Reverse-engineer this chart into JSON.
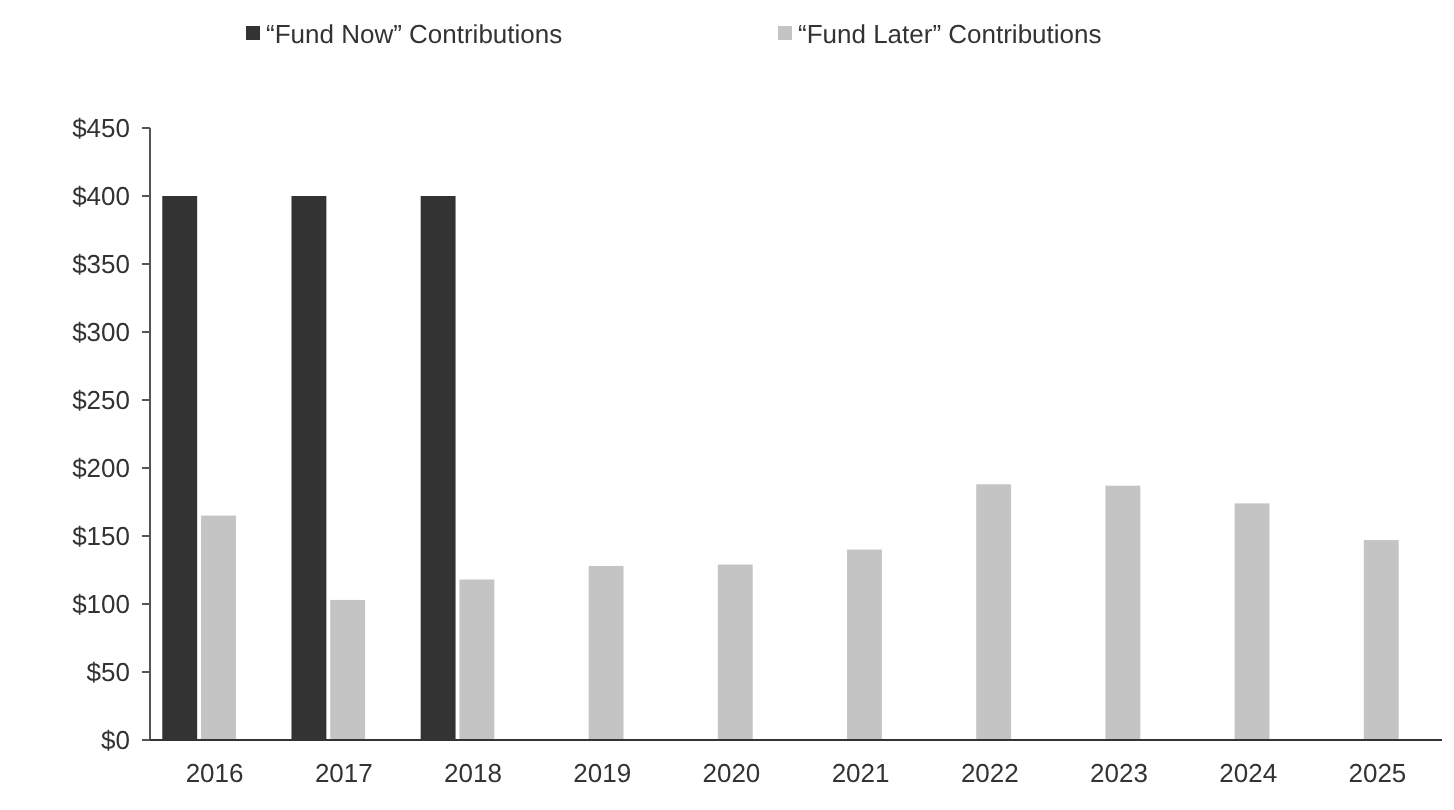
{
  "chart_data": {
    "type": "bar",
    "categories": [
      "2016",
      "2017",
      "2018",
      "2019",
      "2020",
      "2021",
      "2022",
      "2023",
      "2024",
      "2025"
    ],
    "series": [
      {
        "name": "“Fund Now” Contributions",
        "color": "#333333",
        "values": [
          400,
          400,
          400,
          null,
          null,
          null,
          null,
          null,
          null,
          null
        ]
      },
      {
        "name": "“Fund Later” Contributions",
        "color": "#c4c4c4",
        "values": [
          165,
          103,
          118,
          128,
          129,
          140,
          188,
          187,
          174,
          147
        ]
      }
    ],
    "ylim": [
      0,
      450
    ],
    "yticks": [
      {
        "value": 0,
        "label": "$0"
      },
      {
        "value": 50,
        "label": "$50"
      },
      {
        "value": 100,
        "label": "$100"
      },
      {
        "value": 150,
        "label": "$150"
      },
      {
        "value": 200,
        "label": "$200"
      },
      {
        "value": 250,
        "label": "$250"
      },
      {
        "value": 300,
        "label": "$300"
      },
      {
        "value": 350,
        "label": "$350"
      },
      {
        "value": 400,
        "label": "$400"
      },
      {
        "value": 450,
        "label": "$450"
      }
    ],
    "grid": false,
    "legend": "top"
  }
}
